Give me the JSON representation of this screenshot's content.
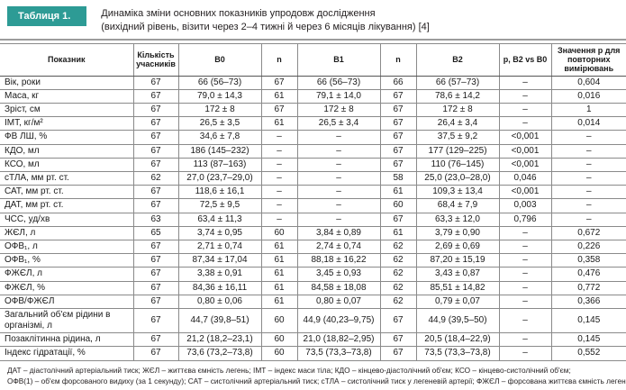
{
  "accent_color": "#2d9b95",
  "title_block": {
    "label": "Таблиця 1.",
    "title_line1": "Динаміка зміни основних показників упродовж дослідження",
    "title_line2": "(вихідний рівень, візити через 2–4 тижні й через 6 місяців лікування) [4]"
  },
  "table": {
    "columns": [
      "Показник",
      "Кількість учасників",
      "B0",
      "n",
      "B1",
      "n",
      "B2",
      "p, B2 vs B0",
      "Значення p для повторних вимірювань"
    ],
    "rows": [
      [
        "Вік, роки",
        "67",
        "66 (56–73)",
        "67",
        "66 (56–73)",
        "66",
        "66 (57–73)",
        "–",
        "0,604"
      ],
      [
        "Маса, кг",
        "67",
        "79,0 ± 14,3",
        "61",
        "79,1 ± 14,0",
        "67",
        "78,6 ± 14,2",
        "–",
        "0,016"
      ],
      [
        "Зріст, см",
        "67",
        "172 ± 8",
        "67",
        "172 ± 8",
        "67",
        "172 ± 8",
        "–",
        "1"
      ],
      [
        "ІМТ, кг/м²",
        "67",
        "26,5 ± 3,5",
        "61",
        "26,5 ± 3,4",
        "67",
        "26,4 ± 3,4",
        "–",
        "0,014"
      ],
      [
        "ФВ ЛШ, %",
        "67",
        "34,6 ± 7,8",
        "–",
        "–",
        "67",
        "37,5 ± 9,2",
        "<0,001",
        "–"
      ],
      [
        "КДО, мл",
        "67",
        "186 (145–232)",
        "–",
        "–",
        "67",
        "177 (129–225)",
        "<0,001",
        "–"
      ],
      [
        "КСО, мл",
        "67",
        "113 (87–163)",
        "–",
        "–",
        "67",
        "110 (76–145)",
        "<0,001",
        "–"
      ],
      [
        "сТЛА, мм рт. ст.",
        "62",
        "27,0 (23,7–29,0)",
        "–",
        "–",
        "58",
        "25,0 (23,0–28,0)",
        "0,046",
        "–"
      ],
      [
        "САТ, мм рт. ст.",
        "67",
        "118,6 ± 16,1",
        "–",
        "–",
        "61",
        "109,3 ± 13,4",
        "<0,001",
        "–"
      ],
      [
        "ДАТ, мм рт. ст.",
        "67",
        "72,5 ± 9,5",
        "–",
        "–",
        "60",
        "68,4 ± 7,9",
        "0,003",
        "–"
      ],
      [
        "ЧСС, уд/хв",
        "63",
        "63,4 ± 11,3",
        "–",
        "–",
        "67",
        "63,3 ± 12,0",
        "0,796",
        "–"
      ],
      [
        "ЖЄЛ, л",
        "65",
        "3,74 ± 0,95",
        "60",
        "3,84 ± 0,89",
        "61",
        "3,79 ± 0,90",
        "–",
        "0,672"
      ],
      [
        "ОФВ₁, л",
        "67",
        "2,71 ± 0,74",
        "61",
        "2,74 ± 0,74",
        "62",
        "2,69 ± 0,69",
        "–",
        "0,226"
      ],
      [
        "ОФВ₁, %",
        "67",
        "87,34 ± 17,04",
        "61",
        "88,18 ± 16,22",
        "62",
        "87,20 ± 15,19",
        "–",
        "0,358"
      ],
      [
        "ФЖЄЛ, л",
        "67",
        "3,38 ± 0,91",
        "61",
        "3,45 ± 0,93",
        "62",
        "3,43 ± 0,87",
        "–",
        "0,476"
      ],
      [
        "ФЖЄЛ, %",
        "67",
        "84,36 ± 16,11",
        "61",
        "84,58 ± 18,08",
        "62",
        "85,51 ± 14,82",
        "–",
        "0,772"
      ],
      [
        "ОФВ/ФЖЄЛ",
        "67",
        "0,80 ± 0,06",
        "61",
        "0,80 ± 0,07",
        "62",
        "0,79 ± 0,07",
        "–",
        "0,366"
      ],
      [
        "Загальний об'єм рідини в організмі, л",
        "67",
        "44,7 (39,8–51)",
        "60",
        "44,9 (40,23–9,75)",
        "67",
        "44,9 (39,5–50)",
        "–",
        "0,145"
      ],
      [
        "Позаклітинна рідина, л",
        "67",
        "21,2 (18,2–23,1)",
        "60",
        "21,0 (18,82–2,95)",
        "67",
        "20,5 (18,4–22,9)",
        "–",
        "0,145"
      ],
      [
        "Індекс гідратації, %",
        "67",
        "73,6 (73,2–73,8)",
        "60",
        "73,5 (73,3–73,8)",
        "67",
        "73,5 (73,3–73,8)",
        "–",
        "0,552"
      ]
    ]
  },
  "footnote": {
    "lines": [
      "ДАТ – діастолічний артеріальний тиск; ЖЄЛ – життєва ємність легень; ІМТ – індекс маси тіла; КДО – кінцево-діастолічний об'єм; КСО – кінцево-систолічний об'єм;",
      "ОФВ(1) – об'єм форсованого видиху (за 1 секунду); САТ – систолічний артеріальний тиск; сТЛА – систолічний тиск у легеневій артерії; ФЖЄЛ – форсована життєва ємність легень."
    ]
  }
}
